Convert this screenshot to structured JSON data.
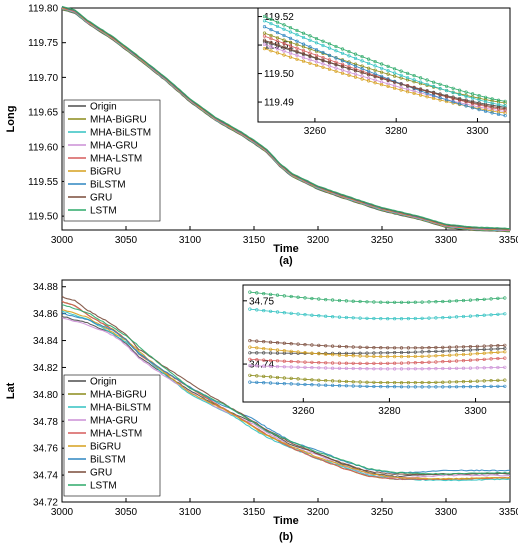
{
  "series_names": [
    "Origin",
    "MHA-BiGRU",
    "MHA-BiLSTM",
    "MHA-GRU",
    "MHA-LSTM",
    "BiGRU",
    "BiLSTM",
    "GRU",
    "LSTM"
  ],
  "colors": [
    "#4d4d4d",
    "#8c8c1a",
    "#33c2c2",
    "#cc8fd6",
    "#d65c5c",
    "#d6a01f",
    "#2e86c1",
    "#7a4b3a",
    "#2eaa6a"
  ],
  "chart_data": [
    {
      "type": "line",
      "panel_label": "(a)",
      "xlabel": "Time",
      "ylabel": "Long",
      "xlim": [
        3000,
        3350
      ],
      "ylim": [
        119.48,
        119.8
      ],
      "xticks": [
        3000,
        3050,
        3100,
        3150,
        3200,
        3250,
        3300,
        3350
      ],
      "yticks": [
        119.5,
        119.55,
        119.6,
        119.65,
        119.7,
        119.75,
        119.8
      ],
      "legend_position": "lower-left",
      "main_series": [
        {
          "name": "Origin",
          "x": [
            3000,
            3010,
            3020,
            3040,
            3060,
            3080,
            3100,
            3120,
            3140,
            3150,
            3160,
            3170,
            3180,
            3200,
            3220,
            3250,
            3280,
            3300,
            3320,
            3350
          ],
          "y": [
            119.8,
            119.795,
            119.78,
            119.756,
            119.728,
            119.699,
            119.667,
            119.64,
            119.619,
            119.607,
            119.594,
            119.574,
            119.559,
            119.541,
            119.528,
            119.51,
            119.497,
            119.486,
            119.482,
            119.48
          ]
        }
      ],
      "inset": {
        "xlim": [
          3246,
          3308
        ],
        "ylim": [
          119.483,
          119.523
        ],
        "xticks": [
          3260,
          3280,
          3300
        ],
        "yticks": [
          119.49,
          119.5,
          119.51,
          119.52
        ],
        "series": [
          {
            "name": "Origin",
            "y_start": 119.512,
            "y_end": 119.488
          },
          {
            "name": "MHA-BiGRU",
            "y_start": 119.515,
            "y_end": 119.4895
          },
          {
            "name": "MHA-BiLSTM",
            "y_start": 119.5195,
            "y_end": 119.4885
          },
          {
            "name": "MHA-GRU",
            "y_start": 119.511,
            "y_end": 119.4865
          },
          {
            "name": "MHA-LSTM",
            "y_start": 119.514,
            "y_end": 119.487
          },
          {
            "name": "BiGRU",
            "y_start": 119.5095,
            "y_end": 119.486
          },
          {
            "name": "BiLSTM",
            "y_start": 119.5175,
            "y_end": 119.485
          },
          {
            "name": "GRU",
            "y_start": 119.5125,
            "y_end": 119.4875
          },
          {
            "name": "LSTM",
            "y_start": 119.521,
            "y_end": 119.49
          }
        ]
      }
    },
    {
      "type": "line",
      "panel_label": "(b)",
      "xlabel": "Time",
      "ylabel": "Lat",
      "xlim": [
        3000,
        3350
      ],
      "ylim": [
        34.72,
        34.885
      ],
      "xticks": [
        3000,
        3050,
        3100,
        3150,
        3200,
        3250,
        3300,
        3350
      ],
      "yticks": [
        34.72,
        34.74,
        34.76,
        34.78,
        34.8,
        34.82,
        34.84,
        34.86,
        34.88
      ],
      "legend_position": "lower-left",
      "main_series": [
        {
          "name": "Origin",
          "x": [
            3000,
            3020,
            3040,
            3050,
            3060,
            3080,
            3100,
            3120,
            3140,
            3150,
            3160,
            3180,
            3200,
            3220,
            3240,
            3260,
            3280,
            3300,
            3320,
            3350
          ],
          "y": [
            34.858,
            34.853,
            34.845,
            34.838,
            34.828,
            34.815,
            34.803,
            34.792,
            34.783,
            34.779,
            34.773,
            34.762,
            34.756,
            34.748,
            34.742,
            34.739,
            34.74,
            34.741,
            34.741,
            34.741
          ]
        },
        {
          "name": "MHA-BiGRU",
          "x": [
            3000,
            3010,
            3020,
            3040,
            3050,
            3060,
            3080,
            3100,
            3120,
            3140,
            3160,
            3180,
            3200,
            3220,
            3240,
            3260,
            3300,
            3350
          ],
          "y": [
            34.869,
            34.866,
            34.859,
            34.848,
            34.841,
            34.83,
            34.817,
            34.805,
            34.793,
            34.782,
            34.77,
            34.76,
            34.752,
            34.745,
            34.739,
            34.737,
            34.737,
            34.738
          ]
        },
        {
          "name": "MHA-BiLSTM",
          "x": [
            3000,
            3020,
            3050,
            3080,
            3100,
            3130,
            3160,
            3200,
            3240,
            3260,
            3300,
            3350
          ],
          "y": [
            34.862,
            34.856,
            34.839,
            34.815,
            34.8,
            34.786,
            34.768,
            34.752,
            34.74,
            34.737,
            34.736,
            34.737
          ]
        }
      ],
      "inset": {
        "xlim": [
          3246,
          3308
        ],
        "ylim": [
          34.734,
          34.7525
        ],
        "xticks": [
          3260,
          3280,
          3300
        ],
        "yticks": [
          34.74,
          34.75
        ],
        "series": [
          {
            "name": "Origin",
            "y_start": 34.7418,
            "y_end": 34.7425
          },
          {
            "name": "MHA-BiGRU",
            "y_start": 34.7383,
            "y_end": 34.7375
          },
          {
            "name": "MHA-BiLSTM",
            "y_start": 34.7488,
            "y_end": 34.748
          },
          {
            "name": "MHA-GRU",
            "y_start": 34.7398,
            "y_end": 34.7395
          },
          {
            "name": "MHA-LSTM",
            "y_start": 34.7408,
            "y_end": 34.741
          },
          {
            "name": "BiGRU",
            "y_start": 34.7428,
            "y_end": 34.742
          },
          {
            "name": "BiLSTM",
            "y_start": 34.7372,
            "y_end": 34.7365
          },
          {
            "name": "GRU",
            "y_start": 34.7438,
            "y_end": 34.743
          },
          {
            "name": "LSTM",
            "y_start": 34.7515,
            "y_end": 34.7505
          }
        ]
      }
    }
  ]
}
